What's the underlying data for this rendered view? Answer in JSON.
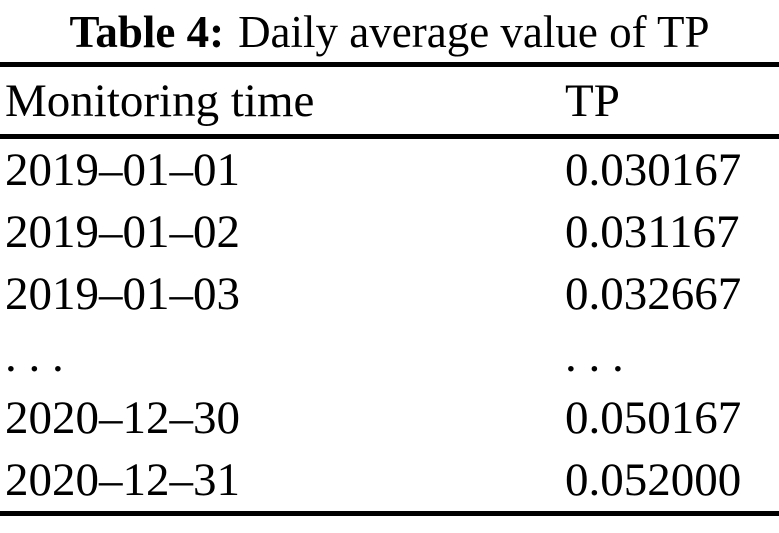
{
  "caption": {
    "label": "Table 4:",
    "text": "Daily average value of TP"
  },
  "table": {
    "columns": [
      "Monitoring time",
      "TP"
    ],
    "rows": [
      {
        "time": "2019–01–01",
        "tp": "0.030167"
      },
      {
        "time": "2019–01–02",
        "tp": "0.031167"
      },
      {
        "time": "2019–01–03",
        "tp": "0.032667"
      },
      {
        "time": ". . .",
        "tp": ". . ."
      },
      {
        "time": "2020–12–30",
        "tp": "0.050167"
      },
      {
        "time": "2020–12–31",
        "tp": "0.052000"
      }
    ]
  },
  "colors": {
    "text": "#000000",
    "background": "#ffffff",
    "rule": "#000000"
  }
}
